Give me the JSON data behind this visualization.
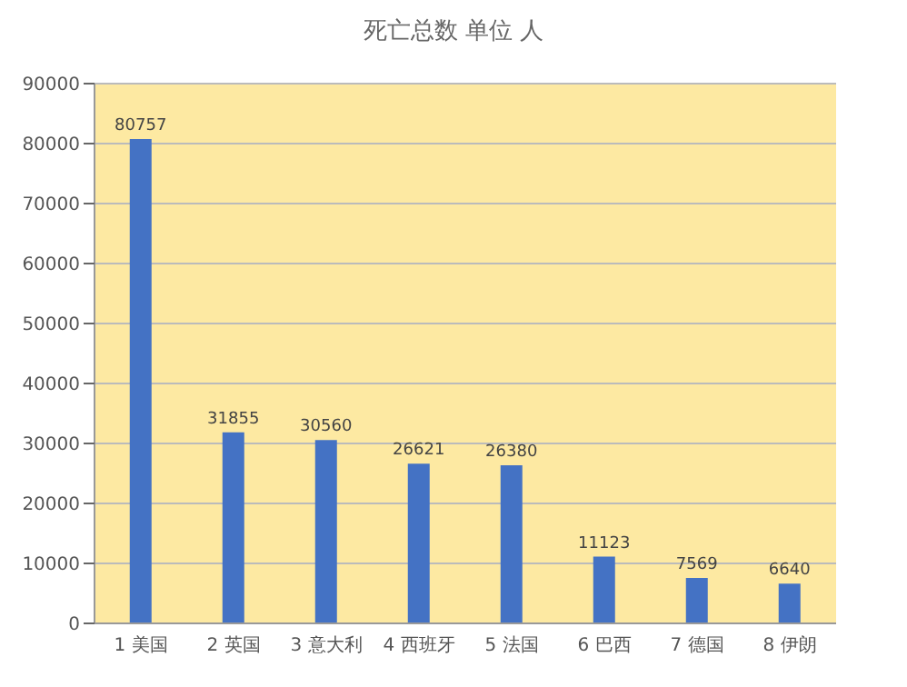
{
  "chart_data": {
    "type": "bar",
    "title": "死亡总数 单位 人",
    "categories": [
      "1 美国",
      "2 英国",
      "3 意大利",
      "4 西班牙",
      "5 法国",
      "6 巴西",
      "7 德国",
      "8 伊朗"
    ],
    "values": [
      80757,
      31855,
      30560,
      26621,
      26380,
      11123,
      7569,
      6640
    ],
    "color": "#4472c4",
    "ylim": [
      0,
      90000
    ],
    "yticks": [
      0,
      10000,
      20000,
      30000,
      40000,
      50000,
      60000,
      70000,
      80000,
      90000
    ],
    "grid": "y",
    "data_labels": true
  }
}
